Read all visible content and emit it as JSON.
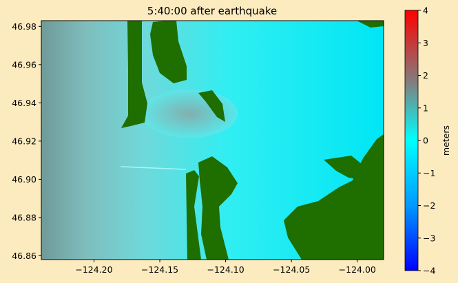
{
  "chart_data": {
    "type": "heatmap",
    "title": "5:40:00 after earthquake",
    "xlabel": "",
    "ylabel": "",
    "colorbar_label": "meters",
    "xlim": [
      -124.24,
      -123.98
    ],
    "ylim": [
      46.858,
      46.983
    ],
    "x_ticks": [
      -124.2,
      -124.15,
      -124.1,
      -124.05,
      -124.0
    ],
    "x_tick_labels": [
      "−124.20",
      "−124.15",
      "−124.10",
      "−124.05",
      "−124.00"
    ],
    "y_ticks": [
      46.86,
      46.88,
      46.9,
      46.92,
      46.94,
      46.96,
      46.98
    ],
    "y_tick_labels": [
      "46.86",
      "46.88",
      "46.90",
      "46.92",
      "46.94",
      "46.96",
      "46.98"
    ],
    "colorbar_range": [
      -4,
      4
    ],
    "colorbar_ticks": [
      4,
      3,
      2,
      1,
      0,
      -1,
      -2,
      -3,
      -4
    ],
    "colorbar_tick_labels": [
      "4",
      "3",
      "2",
      "1",
      "0",
      "−1",
      "−2",
      "−3",
      "−4"
    ],
    "colormap_stops": [
      "#0000ff",
      "#0099ff",
      "#00ffff",
      "#808080",
      "#ff0000"
    ],
    "land_color": "#1e6e00",
    "grid": false
  }
}
